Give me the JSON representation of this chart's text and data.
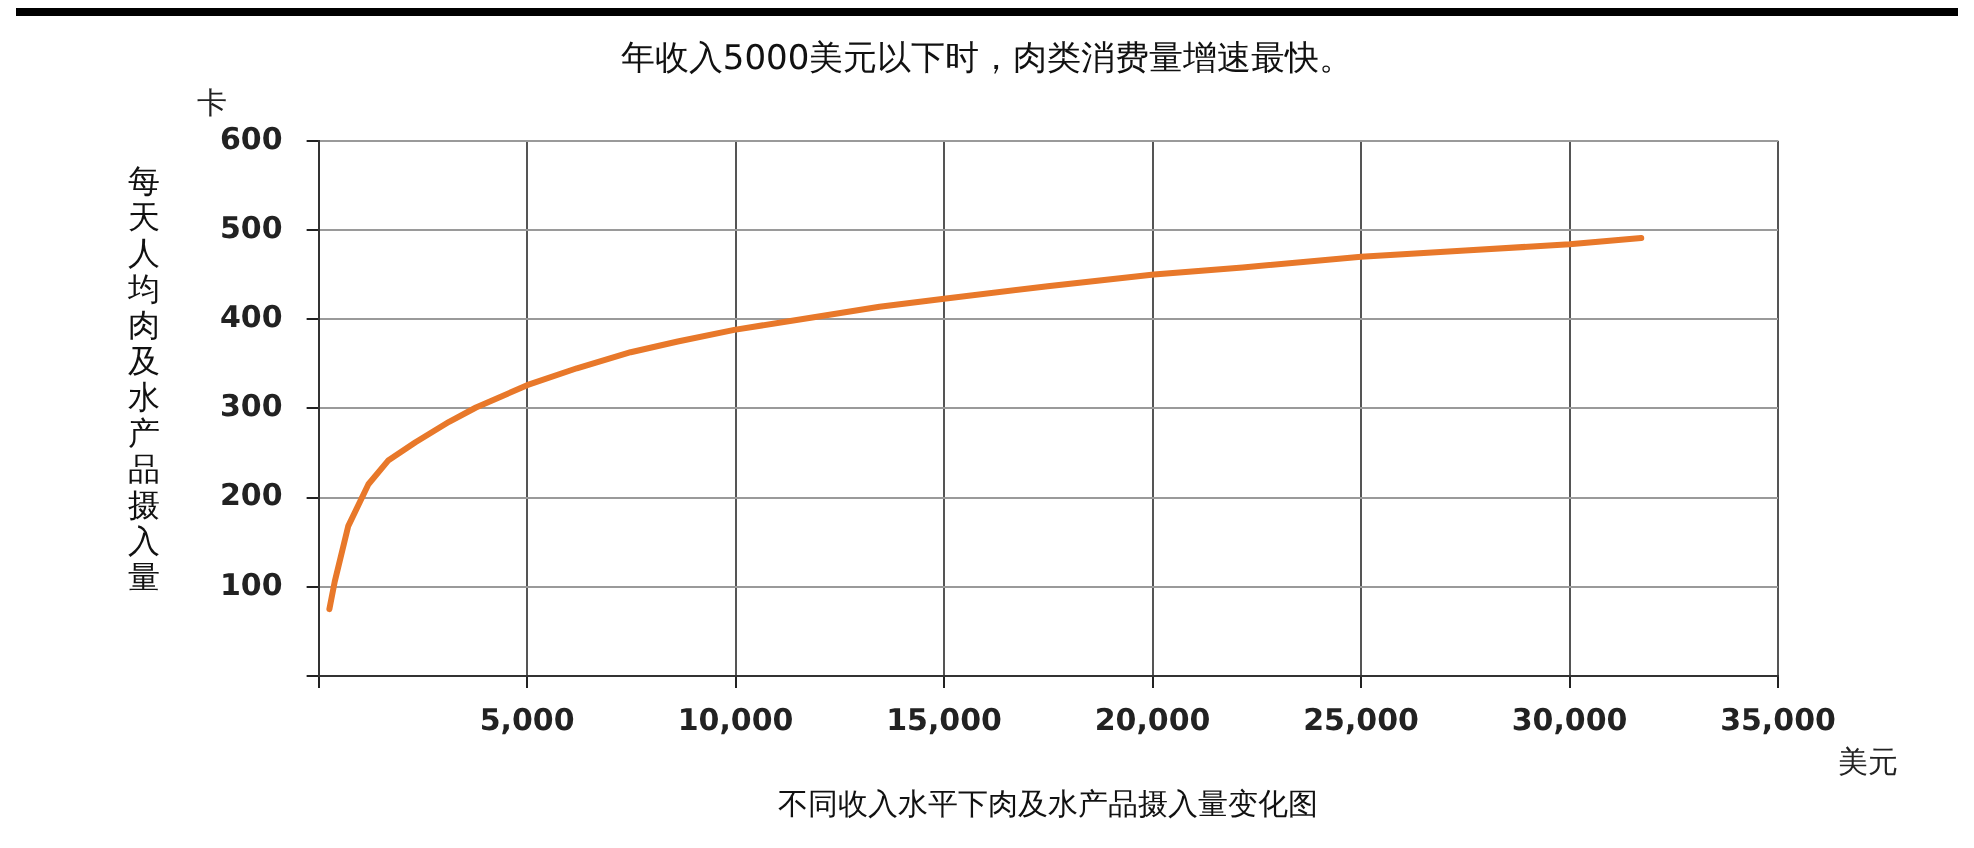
{
  "chart_data": {
    "type": "line",
    "title": "年收入5000美元以下时，肉类消费量增速最快。",
    "xlabel": "不同收入水平下肉及水产品摄入量变化图",
    "ylabel": "每天人均肉及水产品摄入量",
    "annotations": [
      "卡",
      "美元"
    ],
    "x": [
      258,
      387,
      710,
      1194,
      1677,
      2323,
      3129,
      3774,
      5000,
      6194,
      7484,
      8613,
      9968,
      11839,
      13452,
      15000,
      17484,
      20032,
      22161,
      25000,
      27500,
      30000,
      31720
    ],
    "series": [
      {
        "color": "#e8782a",
        "values": [
          75,
          106,
          168,
          215,
          242,
          262,
          285,
          301,
          326,
          345,
          363,
          375,
          388,
          402,
          414,
          423,
          437,
          450,
          458,
          470,
          477,
          484,
          491
        ]
      }
    ],
    "xlim": [
      0,
      35000
    ],
    "xticks": [
      {
        "value": 0,
        "label": null
      },
      {
        "value": 5000,
        "label": "5,000"
      },
      {
        "value": 10000,
        "label": "10,000"
      },
      {
        "value": 15000,
        "label": "15,000"
      },
      {
        "value": 20000,
        "label": "20,000"
      },
      {
        "value": 25000,
        "label": "25,000"
      },
      {
        "value": 30000,
        "label": "30,000"
      },
      {
        "value": 35000,
        "label": "35,000"
      }
    ],
    "ylim": [
      0,
      600
    ],
    "yticks": [
      {
        "value": 0,
        "label": null
      },
      100,
      200,
      300,
      400,
      500,
      600
    ],
    "grid": true,
    "legend": false,
    "marker": "none",
    "line_style": "solid"
  }
}
